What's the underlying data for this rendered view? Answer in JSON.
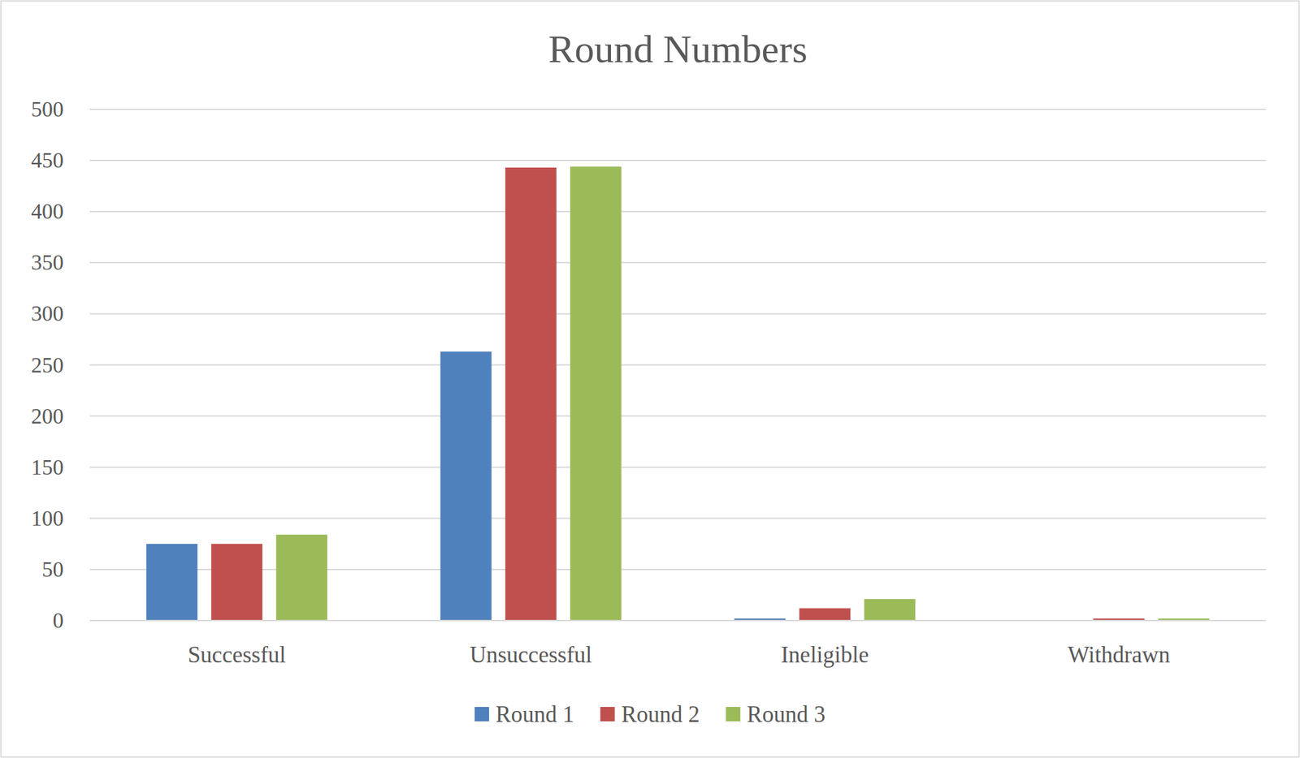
{
  "chart_data": {
    "type": "bar",
    "title": "Round Numbers",
    "categories": [
      "Successful",
      "Unsuccessful",
      "Ineligible",
      "Withdrawn"
    ],
    "series": [
      {
        "name": "Round 1",
        "color": "#4f81bd",
        "values": [
          75,
          263,
          2,
          0
        ]
      },
      {
        "name": "Round 2",
        "color": "#c0504d",
        "values": [
          75,
          443,
          12,
          2
        ]
      },
      {
        "name": "Round 3",
        "color": "#9bbb59",
        "values": [
          84,
          444,
          21,
          2
        ]
      }
    ],
    "ylim": [
      0,
      500
    ],
    "yticks": [
      0,
      50,
      100,
      150,
      200,
      250,
      300,
      350,
      400,
      450,
      500
    ],
    "grid": true,
    "legend": "bottom"
  }
}
